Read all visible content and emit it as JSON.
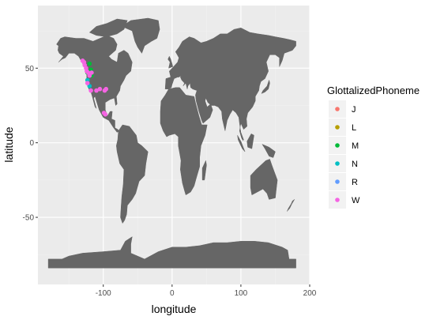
{
  "chart_data": {
    "type": "scatter",
    "xlabel": "longitude",
    "ylabel": "latitude",
    "xlim": [
      -195,
      200
    ],
    "ylim": [
      -95,
      92
    ],
    "xticks": [
      -100,
      0,
      100,
      200
    ],
    "yticks": [
      -50,
      0,
      50
    ],
    "grid": true,
    "legend": {
      "title": "GlottalizedPhoneme",
      "position": "right",
      "entries": [
        {
          "label": "J",
          "color": "#f8766d"
        },
        {
          "label": "L",
          "color": "#b79f00"
        },
        {
          "label": "M",
          "color": "#00ba38"
        },
        {
          "label": "N",
          "color": "#00bfc4"
        },
        {
          "label": "R",
          "color": "#619cff"
        },
        {
          "label": "W",
          "color": "#f564e3"
        }
      ]
    },
    "map_fill": "#666666",
    "panel_background": "#ebebeb",
    "series": [
      {
        "name": "M",
        "color": "#00ba38",
        "points": [
          [
            -120,
            53
          ],
          [
            -118,
            49
          ],
          [
            -117,
            45
          ],
          [
            -123,
            47
          ]
        ]
      },
      {
        "name": "N",
        "color": "#00bfc4",
        "points": [
          [
            -123,
            42
          ],
          [
            -120,
            38
          ]
        ]
      },
      {
        "name": "W",
        "color": "#f564e3",
        "points": [
          [
            -130,
            55
          ],
          [
            -128,
            54
          ],
          [
            -127,
            52
          ],
          [
            -125,
            50
          ],
          [
            -124,
            48
          ],
          [
            -122,
            47
          ],
          [
            -120,
            45
          ],
          [
            -117,
            47
          ],
          [
            -123,
            40
          ],
          [
            -118,
            35
          ],
          [
            -110,
            35
          ],
          [
            -105,
            36
          ],
          [
            -98,
            35
          ],
          [
            -96,
            36
          ],
          [
            -99,
            20
          ],
          [
            -97,
            19
          ]
        ]
      }
    ]
  }
}
